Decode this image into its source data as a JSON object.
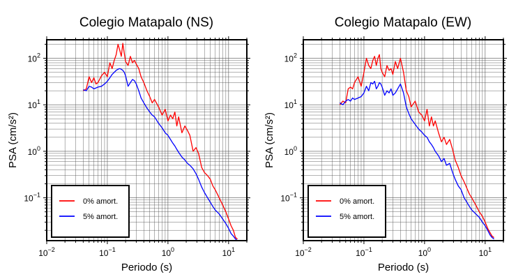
{
  "chart_data": [
    {
      "type": "line",
      "title": "Colegio Matapalo (NS)",
      "xlabel": "Periodo (s)",
      "ylabel": "PSA (cm/s²)",
      "xscale": "log",
      "yscale": "log",
      "xlim": [
        0.01,
        20
      ],
      "ylim": [
        0.012,
        250
      ],
      "grid": true,
      "legend_position": "bottom-left",
      "xticks": [
        {
          "base": "10",
          "exp": "−2"
        },
        {
          "base": "10",
          "exp": "−1"
        },
        {
          "base": "10",
          "exp": "0"
        },
        {
          "base": "10",
          "exp": "1"
        }
      ],
      "yticks": [
        {
          "base": "10",
          "exp": "−1"
        },
        {
          "base": "10",
          "exp": "0"
        },
        {
          "base": "10",
          "exp": "1"
        },
        {
          "base": "10",
          "exp": "2"
        }
      ],
      "series": [
        {
          "name": "0% amort.",
          "color": "#ff0000",
          "x": [
            0.04,
            0.045,
            0.05,
            0.055,
            0.06,
            0.065,
            0.07,
            0.08,
            0.09,
            0.1,
            0.11,
            0.12,
            0.13,
            0.14,
            0.15,
            0.16,
            0.17,
            0.18,
            0.19,
            0.2,
            0.22,
            0.24,
            0.26,
            0.28,
            0.3,
            0.33,
            0.36,
            0.4,
            0.45,
            0.5,
            0.55,
            0.6,
            0.7,
            0.8,
            0.9,
            1.0,
            1.1,
            1.2,
            1.3,
            1.4,
            1.5,
            1.7,
            1.9,
            2.1,
            2.3,
            2.6,
            2.9,
            3.2,
            3.6,
            4.0,
            4.5,
            5.0,
            5.5,
            6.0,
            7.0,
            8.0,
            9.0,
            10.0,
            11.0,
            12.0,
            13.0,
            14.0
          ],
          "y": [
            20,
            22,
            40,
            30,
            38,
            28,
            30,
            42,
            50,
            40,
            80,
            60,
            90,
            120,
            200,
            150,
            110,
            210,
            130,
            85,
            70,
            110,
            80,
            90,
            75,
            60,
            40,
            30,
            20,
            15,
            11,
            13,
            9,
            6,
            8,
            4.5,
            6,
            5,
            7,
            3.5,
            5.5,
            2.5,
            3.5,
            2.8,
            2.2,
            1.0,
            1.2,
            0.9,
            0.45,
            0.35,
            0.3,
            0.25,
            0.18,
            0.15,
            0.1,
            0.07,
            0.05,
            0.035,
            0.025,
            0.02,
            0.014,
            0.013
          ]
        },
        {
          "name": "5% amort.",
          "color": "#0000ff",
          "x": [
            0.04,
            0.045,
            0.05,
            0.055,
            0.06,
            0.065,
            0.07,
            0.08,
            0.09,
            0.1,
            0.11,
            0.12,
            0.13,
            0.14,
            0.15,
            0.16,
            0.17,
            0.18,
            0.19,
            0.2,
            0.22,
            0.24,
            0.26,
            0.28,
            0.3,
            0.33,
            0.36,
            0.4,
            0.45,
            0.5,
            0.55,
            0.6,
            0.7,
            0.8,
            0.9,
            1.0,
            1.1,
            1.2,
            1.3,
            1.4,
            1.5,
            1.7,
            1.9,
            2.1,
            2.3,
            2.6,
            2.9,
            3.2,
            3.6,
            4.0,
            4.5,
            5.0,
            5.5,
            6.0,
            7.0,
            8.0,
            9.0,
            10.0,
            11.0,
            12.0,
            13.0,
            14.0
          ],
          "y": [
            21,
            20,
            25,
            24,
            22,
            23,
            24,
            25,
            28,
            32,
            38,
            45,
            50,
            55,
            58,
            60,
            58,
            55,
            50,
            42,
            25,
            30,
            35,
            33,
            28,
            20,
            14,
            11,
            8.5,
            7,
            6,
            5.5,
            4,
            3.2,
            2.5,
            2.2,
            1.8,
            1.5,
            1.3,
            1.1,
            0.95,
            0.75,
            0.65,
            0.55,
            0.5,
            0.42,
            0.33,
            0.25,
            0.17,
            0.13,
            0.1,
            0.08,
            0.065,
            0.055,
            0.045,
            0.035,
            0.028,
            0.022,
            0.017,
            0.015,
            0.013,
            0.012
          ]
        }
      ]
    },
    {
      "type": "line",
      "title": "Colegio Matapalo (EW)",
      "xlabel": "Periodo (s)",
      "ylabel": "PSA (cm/s²)",
      "xscale": "log",
      "yscale": "log",
      "xlim": [
        0.01,
        20
      ],
      "ylim": [
        0.012,
        250
      ],
      "grid": true,
      "legend_position": "bottom-left",
      "xticks": [
        {
          "base": "10",
          "exp": "−2"
        },
        {
          "base": "10",
          "exp": "−1"
        },
        {
          "base": "10",
          "exp": "0"
        },
        {
          "base": "10",
          "exp": "1"
        }
      ],
      "yticks": [
        {
          "base": "10",
          "exp": "−1"
        },
        {
          "base": "10",
          "exp": "0"
        },
        {
          "base": "10",
          "exp": "1"
        },
        {
          "base": "10",
          "exp": "2"
        }
      ],
      "series": [
        {
          "name": "0% amort.",
          "color": "#ff0000",
          "x": [
            0.04,
            0.045,
            0.05,
            0.055,
            0.06,
            0.065,
            0.07,
            0.08,
            0.09,
            0.1,
            0.11,
            0.12,
            0.13,
            0.14,
            0.15,
            0.16,
            0.17,
            0.18,
            0.19,
            0.2,
            0.22,
            0.24,
            0.26,
            0.28,
            0.3,
            0.33,
            0.36,
            0.4,
            0.45,
            0.5,
            0.55,
            0.6,
            0.7,
            0.8,
            0.9,
            1.0,
            1.1,
            1.2,
            1.3,
            1.4,
            1.5,
            1.7,
            1.9,
            2.1,
            2.3,
            2.6,
            2.9,
            3.2,
            3.6,
            4.0,
            4.5,
            5.0,
            5.5,
            6.0,
            7.0,
            8.0,
            9.0,
            10.0,
            11.0,
            12.0,
            13.0,
            14.0
          ],
          "y": [
            10,
            12,
            11,
            22,
            24,
            22,
            30,
            40,
            25,
            50,
            100,
            70,
            60,
            90,
            110,
            70,
            100,
            120,
            60,
            50,
            40,
            70,
            55,
            60,
            45,
            85,
            60,
            100,
            50,
            20,
            15,
            9,
            12,
            7,
            6,
            4.5,
            8,
            3.5,
            5.5,
            3.5,
            4.5,
            2.5,
            1.6,
            2.0,
            1.4,
            1.8,
            1.1,
            0.65,
            0.45,
            0.3,
            0.22,
            0.16,
            0.12,
            0.1,
            0.07,
            0.05,
            0.04,
            0.03,
            0.022,
            0.018,
            0.015,
            0.014
          ]
        },
        {
          "name": "5% amort.",
          "color": "#0000ff",
          "x": [
            0.04,
            0.045,
            0.05,
            0.055,
            0.06,
            0.065,
            0.07,
            0.08,
            0.09,
            0.1,
            0.11,
            0.12,
            0.13,
            0.14,
            0.15,
            0.16,
            0.17,
            0.18,
            0.19,
            0.2,
            0.22,
            0.24,
            0.26,
            0.28,
            0.3,
            0.33,
            0.36,
            0.4,
            0.45,
            0.5,
            0.55,
            0.6,
            0.7,
            0.8,
            0.9,
            1.0,
            1.1,
            1.2,
            1.3,
            1.4,
            1.5,
            1.7,
            1.9,
            2.1,
            2.3,
            2.6,
            2.9,
            3.2,
            3.6,
            4.0,
            4.5,
            5.0,
            5.5,
            6.0,
            7.0,
            8.0,
            9.0,
            10.0,
            11.0,
            12.0,
            13.0,
            14.0
          ],
          "y": [
            11,
            10,
            12,
            13,
            12,
            14,
            13,
            14,
            15,
            18,
            25,
            20,
            30,
            28,
            32,
            22,
            25,
            30,
            28,
            24,
            16,
            20,
            18,
            22,
            16,
            18,
            22,
            28,
            18,
            9,
            6.5,
            5,
            3.8,
            3.0,
            2.6,
            2.2,
            2.0,
            1.6,
            1.4,
            1.2,
            1.0,
            0.8,
            0.6,
            0.7,
            0.5,
            0.55,
            0.35,
            0.25,
            0.18,
            0.15,
            0.1,
            0.08,
            0.065,
            0.055,
            0.045,
            0.038,
            0.03,
            0.025,
            0.02,
            0.016,
            0.014,
            0.013
          ]
        }
      ]
    }
  ]
}
